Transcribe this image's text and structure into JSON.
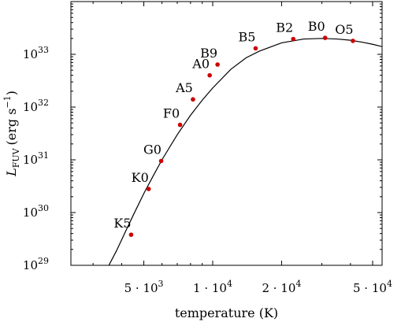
{
  "chart_data": {
    "type": "scatter",
    "xlabel": "temperature (K)",
    "ylabel": "L_FUV (erg s^-1)",
    "ylabel_parts": {
      "symbol": "L",
      "subscript": "FUV",
      "unit_open": "(erg s",
      "unit_exp": "−1",
      "unit_close": ")"
    },
    "x_scale": "log",
    "y_scale": "log",
    "xlim": [
      2400,
      55000
    ],
    "ylim": [
      1e+29,
      1e+34
    ],
    "x_ticks": [
      {
        "value": 5000,
        "label_base": "5 · 10",
        "label_exp": "3"
      },
      {
        "value": 10000,
        "label_base": "1 · 10",
        "label_exp": "4"
      },
      {
        "value": 20000,
        "label_base": "2 · 10",
        "label_exp": "4"
      },
      {
        "value": 50000,
        "label_base": "5 · 10",
        "label_exp": "4"
      }
    ],
    "y_ticks": [
      {
        "value": 1e+29,
        "label_base": "10",
        "label_exp": "29"
      },
      {
        "value": 1e+30,
        "label_base": "10",
        "label_exp": "30"
      },
      {
        "value": 1e+31,
        "label_base": "10",
        "label_exp": "31"
      },
      {
        "value": 1e+32,
        "label_base": "10",
        "label_exp": "32"
      },
      {
        "value": 1e+33,
        "label_base": "10",
        "label_exp": "33"
      }
    ],
    "curve": {
      "x": [
        3500,
        3800,
        4200,
        4500,
        5000,
        5500,
        6000,
        7000,
        8000,
        9000,
        10000,
        12000,
        14000,
        16000,
        20000,
        25000,
        30000,
        35000,
        40000,
        45000,
        50000,
        55000
      ],
      "y": [
        9.6e+28,
        1.9e+29,
        4.8e+29,
        9e+29,
        2.3e+30,
        5e+30,
        1e+31,
        3e+31,
        7e+31,
        1.35e+32,
        2.3e+32,
        5.2e+32,
        8.6e+32,
        1.15e+33,
        1.65e+33,
        1.95e+33,
        2e+33,
        1.95e+33,
        1.85e+33,
        1.7e+33,
        1.55e+33,
        1.4e+33
      ]
    },
    "points": [
      {
        "label": "K5",
        "x": 4400,
        "y": 3.8e+29
      },
      {
        "label": "K0",
        "x": 5250,
        "y": 2.8e+30
      },
      {
        "label": "G0",
        "x": 5950,
        "y": 9.5e+30
      },
      {
        "label": "F0",
        "x": 7200,
        "y": 4.6e+31
      },
      {
        "label": "A5",
        "x": 8200,
        "y": 1.4e+32
      },
      {
        "label": "A0",
        "x": 9700,
        "y": 4e+32
      },
      {
        "label": "B9",
        "x": 10500,
        "y": 6.4e+32
      },
      {
        "label": "B5",
        "x": 15400,
        "y": 1.3e+33
      },
      {
        "label": "B2",
        "x": 22500,
        "y": 1.95e+33
      },
      {
        "label": "B0",
        "x": 31000,
        "y": 2.05e+33
      },
      {
        "label": "O5",
        "x": 41000,
        "y": 1.8e+33
      }
    ],
    "point_color": "#cc0000",
    "curve_color": "#000000",
    "grid": false,
    "legend": "none"
  }
}
